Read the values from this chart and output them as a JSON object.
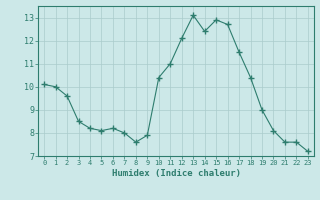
{
  "x": [
    0,
    1,
    2,
    3,
    4,
    5,
    6,
    7,
    8,
    9,
    10,
    11,
    12,
    13,
    14,
    15,
    16,
    17,
    18,
    19,
    20,
    21,
    22,
    23
  ],
  "y": [
    10.1,
    10.0,
    9.6,
    8.5,
    8.2,
    8.1,
    8.2,
    8.0,
    7.6,
    7.9,
    10.4,
    11.0,
    12.1,
    13.1,
    12.4,
    12.9,
    12.7,
    11.5,
    10.4,
    9.0,
    8.1,
    7.6,
    7.6,
    7.2
  ],
  "xlabel": "Humidex (Indice chaleur)",
  "ylabel": "",
  "xlim": [
    -0.5,
    23.5
  ],
  "ylim": [
    7,
    13.5
  ],
  "yticks": [
    7,
    8,
    9,
    10,
    11,
    12,
    13
  ],
  "xticks": [
    0,
    1,
    2,
    3,
    4,
    5,
    6,
    7,
    8,
    9,
    10,
    11,
    12,
    13,
    14,
    15,
    16,
    17,
    18,
    19,
    20,
    21,
    22,
    23
  ],
  "line_color": "#2e7d6e",
  "marker_color": "#2e7d6e",
  "bg_color": "#cce8e8",
  "grid_color": "#aacccc",
  "title_color": "#2e7d6e",
  "xlabel_color": "#2e7d6e",
  "ylabel_color": "#2e7d6e",
  "tick_color": "#2e7d6e",
  "spine_color": "#2e7d6e"
}
